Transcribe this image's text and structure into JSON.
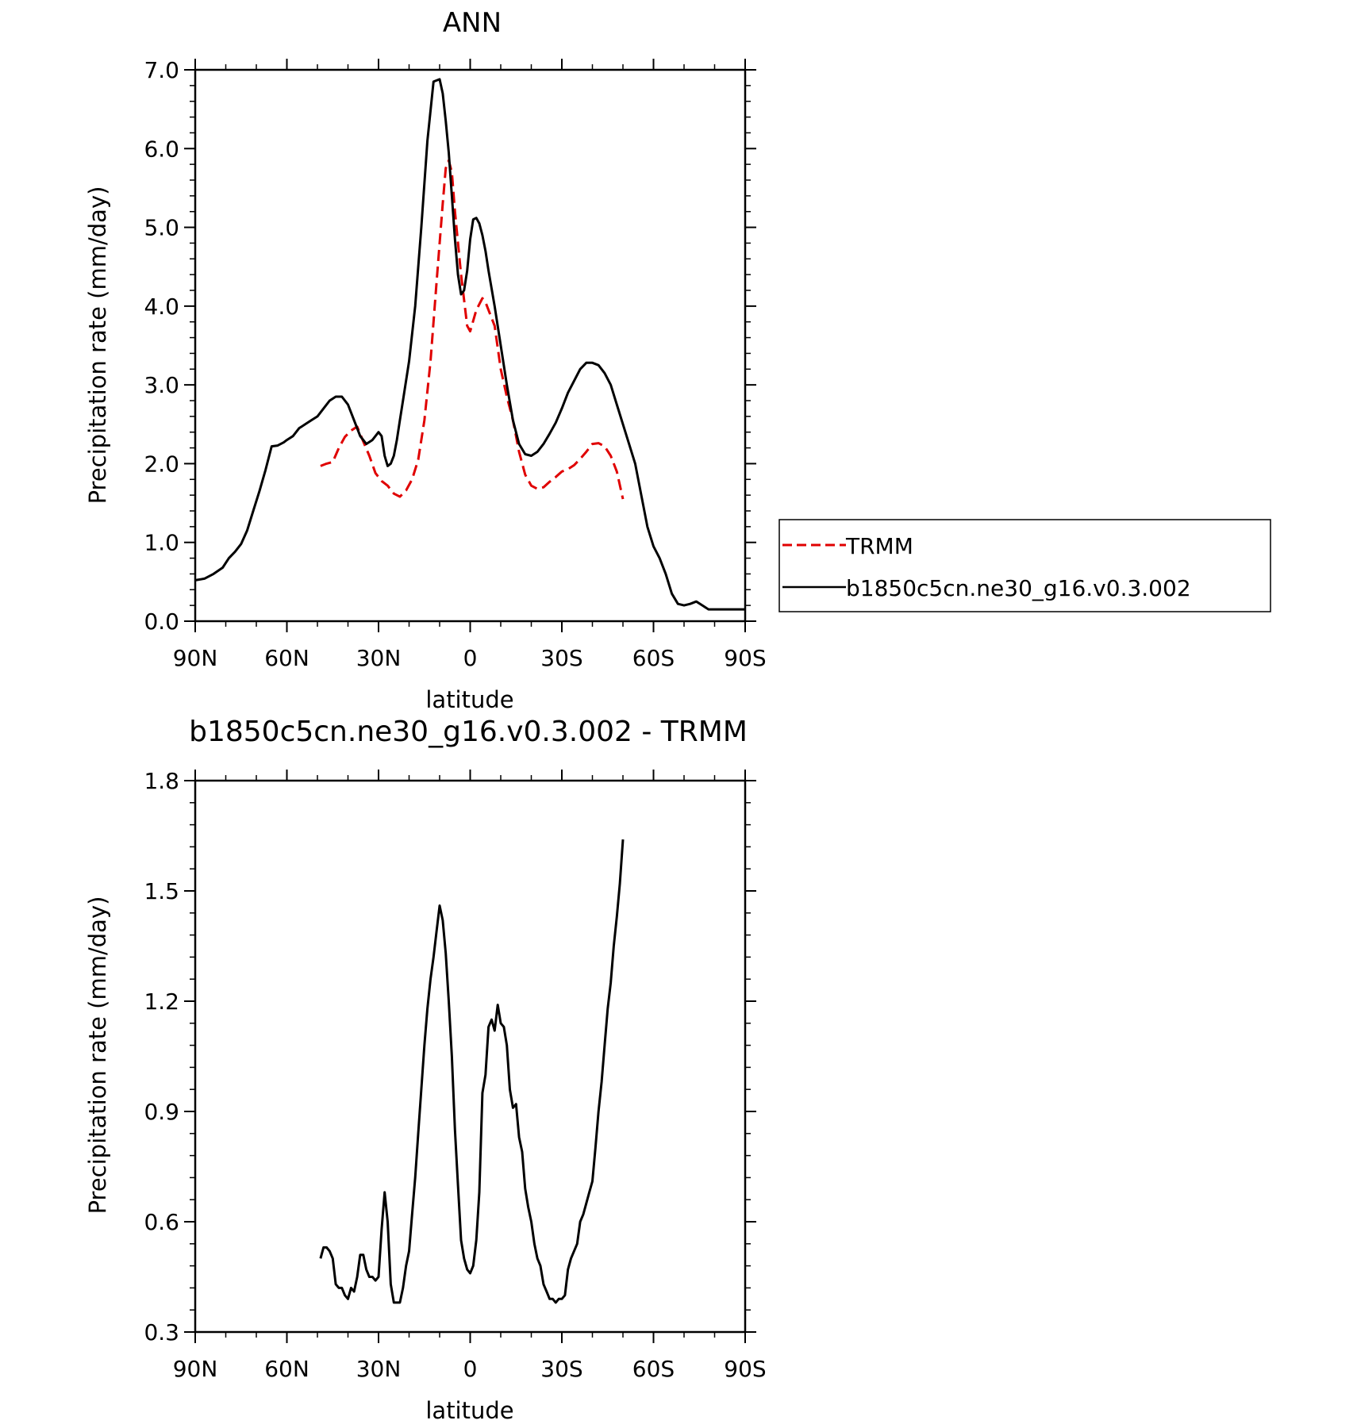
{
  "chart_data": [
    {
      "type": "line",
      "title": "ANN",
      "xlabel": "latitude",
      "ylabel": "Precipitation rate (mm/day)",
      "xlim": [
        90,
        -90
      ],
      "ylim": [
        0,
        7
      ],
      "x_ticks": [
        90,
        60,
        30,
        0,
        -30,
        -60,
        -90
      ],
      "x_tick_labels": [
        "90N",
        "60N",
        "30N",
        "0",
        "30S",
        "60S",
        "90S"
      ],
      "y_ticks": [
        0,
        1,
        2,
        3,
        4,
        5,
        6,
        7
      ],
      "y_tick_labels": [
        "0.0",
        "1.0",
        "2.0",
        "3.0",
        "4.0",
        "5.0",
        "6.0",
        "7.0"
      ],
      "grid": false,
      "legend_position": "right",
      "series": [
        {
          "name": "TRMM",
          "color": "#e00000",
          "style": "dashed",
          "x": [
            49,
            47,
            45,
            43,
            41,
            39,
            37,
            35,
            33,
            31,
            29,
            27,
            25,
            23,
            21,
            19,
            17,
            15,
            13,
            11,
            9,
            8,
            7,
            6,
            5,
            3,
            1,
            0,
            -2,
            -4,
            -5,
            -6,
            -8,
            -10,
            -12,
            -14,
            -16,
            -18,
            -20,
            -22,
            -24,
            -26,
            -28,
            -30,
            -32,
            -34,
            -36,
            -38,
            -40,
            -42,
            -44,
            -46,
            -48,
            -50
          ],
          "y": [
            1.97,
            2.0,
            2.02,
            2.2,
            2.34,
            2.42,
            2.47,
            2.28,
            2.1,
            1.88,
            1.78,
            1.72,
            1.62,
            1.58,
            1.66,
            1.8,
            2.05,
            2.55,
            3.3,
            4.3,
            5.3,
            5.75,
            5.85,
            5.7,
            5.2,
            4.4,
            3.75,
            3.68,
            3.95,
            4.1,
            4.05,
            3.95,
            3.75,
            3.2,
            2.85,
            2.55,
            2.15,
            1.86,
            1.72,
            1.68,
            1.7,
            1.77,
            1.83,
            1.9,
            1.93,
            1.98,
            2.06,
            2.15,
            2.25,
            2.26,
            2.22,
            2.1,
            1.9,
            1.55
          ]
        },
        {
          "name": "b1850c5cn.ne30_g16.v0.3.002",
          "color": "#000000",
          "style": "solid",
          "x": [
            90,
            87,
            84,
            81,
            79,
            77,
            75,
            73,
            71,
            69,
            67,
            65,
            63,
            61,
            60,
            58,
            56,
            54,
            52,
            50,
            48,
            46,
            44,
            42,
            40,
            38,
            36,
            34,
            32,
            30,
            29,
            28,
            27,
            26,
            25,
            24,
            23,
            22,
            20,
            18,
            16,
            14,
            12,
            10,
            9,
            8,
            7,
            6,
            5,
            4,
            3,
            2,
            1,
            0,
            -1,
            -2,
            -3,
            -4,
            -5,
            -6,
            -8,
            -10,
            -12,
            -14,
            -16,
            -18,
            -20,
            -22,
            -24,
            -26,
            -28,
            -30,
            -32,
            -34,
            -36,
            -38,
            -40,
            -42,
            -44,
            -46,
            -48,
            -50,
            -52,
            -54,
            -56,
            -58,
            -60,
            -62,
            -64,
            -66,
            -68,
            -70,
            -72,
            -74,
            -76,
            -78,
            -80,
            -82,
            -84,
            -86,
            -88,
            -90
          ],
          "y": [
            0.52,
            0.54,
            0.6,
            0.68,
            0.8,
            0.88,
            0.98,
            1.15,
            1.4,
            1.65,
            1.92,
            2.22,
            2.23,
            2.27,
            2.3,
            2.35,
            2.45,
            2.5,
            2.55,
            2.6,
            2.7,
            2.8,
            2.85,
            2.85,
            2.75,
            2.55,
            2.35,
            2.25,
            2.3,
            2.4,
            2.35,
            2.1,
            1.97,
            2.0,
            2.1,
            2.3,
            2.55,
            2.8,
            3.3,
            4.0,
            5.0,
            6.1,
            6.85,
            6.88,
            6.7,
            6.35,
            5.95,
            5.4,
            4.85,
            4.4,
            4.15,
            4.2,
            4.45,
            4.85,
            5.1,
            5.12,
            5.05,
            4.9,
            4.7,
            4.45,
            4.0,
            3.5,
            3.0,
            2.55,
            2.25,
            2.12,
            2.1,
            2.15,
            2.25,
            2.38,
            2.52,
            2.7,
            2.9,
            3.05,
            3.2,
            3.28,
            3.28,
            3.25,
            3.15,
            3.0,
            2.75,
            2.5,
            2.25,
            2.0,
            1.6,
            1.2,
            0.95,
            0.8,
            0.6,
            0.35,
            0.22,
            0.2,
            0.22,
            0.25,
            0.2,
            0.15,
            0.15,
            0.15,
            0.15,
            0.15,
            0.15,
            0.15
          ]
        }
      ]
    },
    {
      "type": "line",
      "title": "b1850c5cn.ne30_g16.v0.3.002 - TRMM",
      "xlabel": "latitude",
      "ylabel": "Precipitation rate (mm/day)",
      "xlim": [
        90,
        -90
      ],
      "ylim": [
        0.3,
        1.8
      ],
      "x_ticks": [
        90,
        60,
        30,
        0,
        -30,
        -60,
        -90
      ],
      "x_tick_labels": [
        "90N",
        "60N",
        "30N",
        "0",
        "30S",
        "60S",
        "90S"
      ],
      "y_ticks": [
        0.3,
        0.6,
        0.9,
        1.2,
        1.5,
        1.8
      ],
      "y_tick_labels": [
        "0.3",
        "0.6",
        "0.9",
        "1.2",
        "1.5",
        "1.8"
      ],
      "grid": false,
      "series": [
        {
          "color": "#000000",
          "style": "solid",
          "x": [
            49,
            48,
            47,
            46,
            45,
            44,
            43,
            42,
            41,
            40,
            39,
            38,
            37,
            36,
            35,
            34,
            33,
            32,
            31,
            30,
            29,
            28,
            27,
            26,
            25,
            24,
            23,
            22,
            21,
            20,
            19,
            18,
            17,
            16,
            15,
            14,
            13,
            12,
            11,
            10,
            9,
            8,
            7,
            6,
            5,
            4,
            3,
            2,
            1,
            0,
            -1,
            -2,
            -3,
            -4,
            -5,
            -6,
            -7,
            -8,
            -9,
            -10,
            -11,
            -12,
            -13,
            -14,
            -15,
            -16,
            -17,
            -18,
            -19,
            -20,
            -21,
            -22,
            -23,
            -24,
            -25,
            -26,
            -27,
            -28,
            -29,
            -30,
            -31,
            -32,
            -33,
            -34,
            -35,
            -36,
            -37,
            -38,
            -39,
            -40,
            -41,
            -42,
            -43,
            -44,
            -45,
            -46,
            -47,
            -48,
            -49,
            -50
          ],
          "y": [
            0.5,
            0.53,
            0.53,
            0.52,
            0.5,
            0.43,
            0.42,
            0.42,
            0.4,
            0.39,
            0.42,
            0.41,
            0.45,
            0.51,
            0.51,
            0.47,
            0.45,
            0.45,
            0.44,
            0.45,
            0.58,
            0.68,
            0.6,
            0.43,
            0.38,
            0.38,
            0.38,
            0.42,
            0.48,
            0.52,
            0.62,
            0.72,
            0.84,
            0.96,
            1.08,
            1.18,
            1.26,
            1.32,
            1.39,
            1.46,
            1.42,
            1.33,
            1.2,
            1.05,
            0.85,
            0.7,
            0.55,
            0.5,
            0.47,
            0.46,
            0.48,
            0.55,
            0.68,
            0.95,
            1.0,
            1.13,
            1.15,
            1.12,
            1.19,
            1.14,
            1.13,
            1.08,
            0.96,
            0.91,
            0.92,
            0.83,
            0.79,
            0.69,
            0.64,
            0.6,
            0.54,
            0.5,
            0.48,
            0.43,
            0.41,
            0.39,
            0.39,
            0.38,
            0.39,
            0.39,
            0.4,
            0.47,
            0.5,
            0.52,
            0.54,
            0.6,
            0.62,
            0.65,
            0.68,
            0.71,
            0.8,
            0.9,
            0.98,
            1.08,
            1.18,
            1.25,
            1.35,
            1.43,
            1.52,
            1.64
          ]
        }
      ]
    }
  ]
}
